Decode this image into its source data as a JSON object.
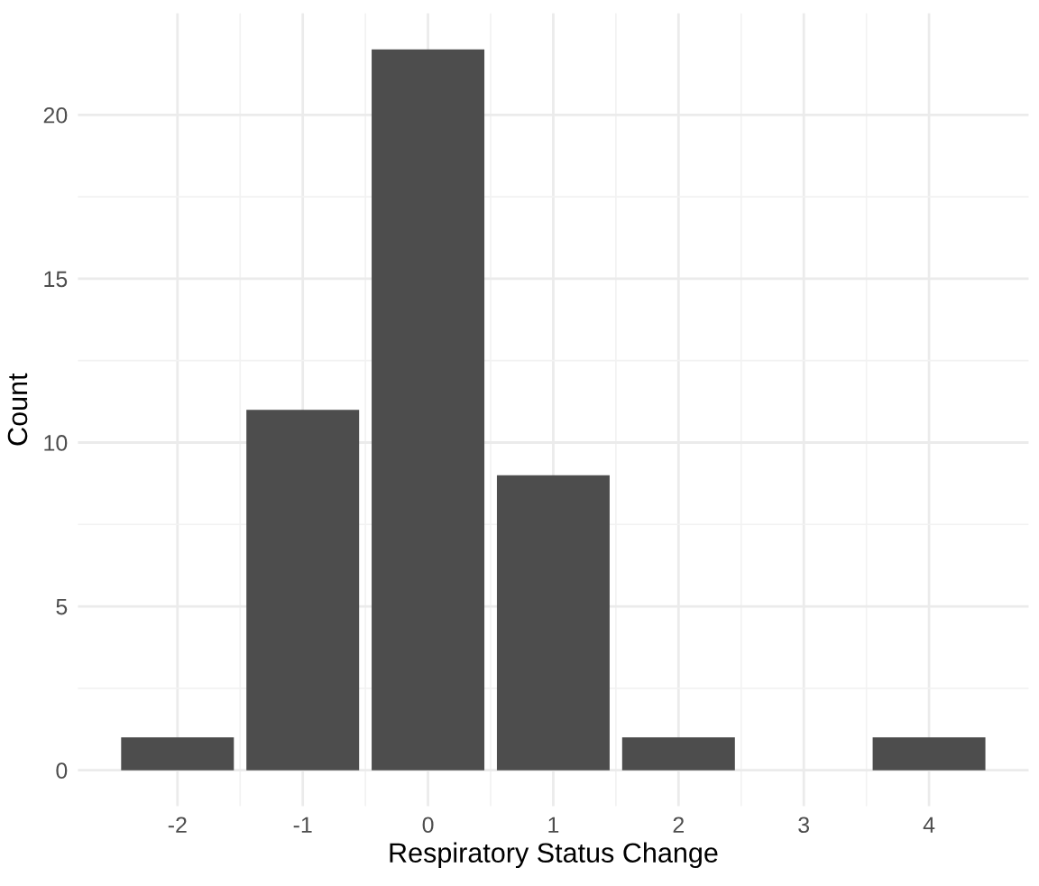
{
  "chart_data": {
    "type": "bar",
    "xlabel": "Respiratory Status Change",
    "ylabel": "Count",
    "x": [
      -2,
      -1,
      0,
      1,
      2,
      3,
      4
    ],
    "values": [
      1,
      11,
      22,
      9,
      1,
      0,
      1
    ],
    "color": "#4d4d4d",
    "xlim": [
      -2.795,
      4.795
    ],
    "xticks": [
      -2,
      -1,
      0,
      1,
      2,
      3,
      4
    ],
    "ylim": [
      -1.1,
      23.1
    ],
    "yticks": [
      0,
      5,
      10,
      15,
      20
    ],
    "grid": true
  }
}
